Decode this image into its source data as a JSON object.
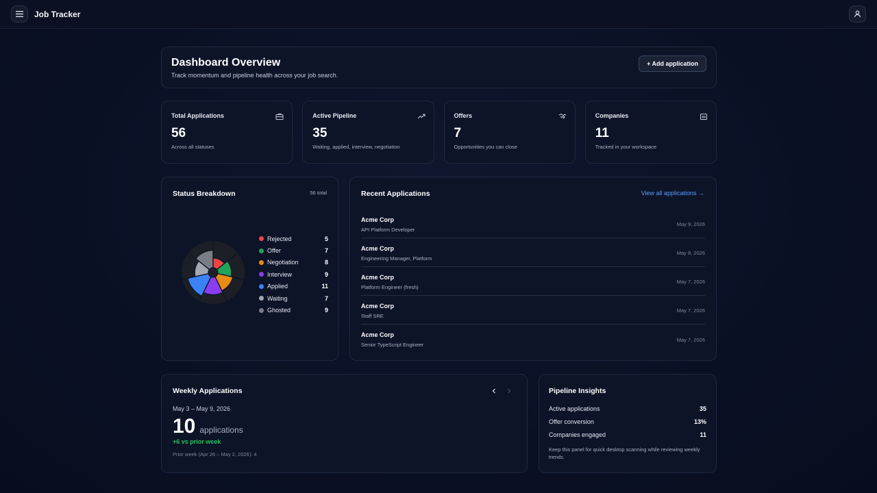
{
  "app": {
    "title": "Job Tracker",
    "menu_icon": "hamburger-icon",
    "profile_icon": "user-icon"
  },
  "header": {
    "title": "Dashboard Overview",
    "subtitle": "Track momentum and pipeline health across your job search.",
    "add_button": "+ Add application"
  },
  "stats": [
    {
      "label": "Total Applications",
      "value": "56",
      "desc": "Across all statuses",
      "icon": "briefcase-icon"
    },
    {
      "label": "Active Pipeline",
      "value": "35",
      "desc": "Waiting, applied, interview, negotiation",
      "icon": "trending-up-icon"
    },
    {
      "label": "Offers",
      "value": "7",
      "desc": "Opportunities you can close",
      "icon": "handshake-icon"
    },
    {
      "label": "Companies",
      "value": "11",
      "desc": "Tracked in your workspace",
      "icon": "building-icon"
    }
  ],
  "status_breakdown": {
    "title": "Status Breakdown",
    "total_label": "56 total",
    "items": [
      {
        "name": "Rejected",
        "count": 5,
        "color": "#ef4444"
      },
      {
        "name": "Offer",
        "count": 7,
        "color": "#22a35a"
      },
      {
        "name": "Negotiation",
        "count": 8,
        "color": "#e98a12"
      },
      {
        "name": "Interview",
        "count": 9,
        "color": "#8b3df0"
      },
      {
        "name": "Applied",
        "count": 11,
        "color": "#3b82f6"
      },
      {
        "name": "Waiting",
        "count": 7,
        "color": "#a3a7b0"
      },
      {
        "name": "Ghosted",
        "count": 9,
        "color": "#7a7d85"
      }
    ]
  },
  "recent": {
    "title": "Recent Applications",
    "view_all": "View all applications →",
    "items": [
      {
        "company": "Acme Corp",
        "role": "API Platform Developer",
        "date": "May 9, 2026"
      },
      {
        "company": "Acme Corp",
        "role": "Engineering Manager, Platform",
        "date": "May 8, 2026"
      },
      {
        "company": "Acme Corp",
        "role": "Platform Engineer (fresh)",
        "date": "May 7, 2026"
      },
      {
        "company": "Acme Corp",
        "role": "Staff SRE",
        "date": "May 7, 2026"
      },
      {
        "company": "Acme Corp",
        "role": "Senior TypeScript Engineer",
        "date": "May 7, 2026"
      }
    ]
  },
  "weekly": {
    "title": "Weekly Applications",
    "range": "May 3 – May 9, 2026",
    "count": "10",
    "unit": "applications",
    "delta": "+6 vs prior week",
    "prior": "Prior week (Apr 26 – May 2, 2026): 4"
  },
  "insights": {
    "title": "Pipeline Insights",
    "rows": [
      {
        "label": "Active applications",
        "value": "35"
      },
      {
        "label": "Offer conversion",
        "value": "13%"
      },
      {
        "label": "Companies engaged",
        "value": "11"
      }
    ],
    "note": "Keep this panel for quick desktop scanning while reviewing weekly trends."
  }
}
